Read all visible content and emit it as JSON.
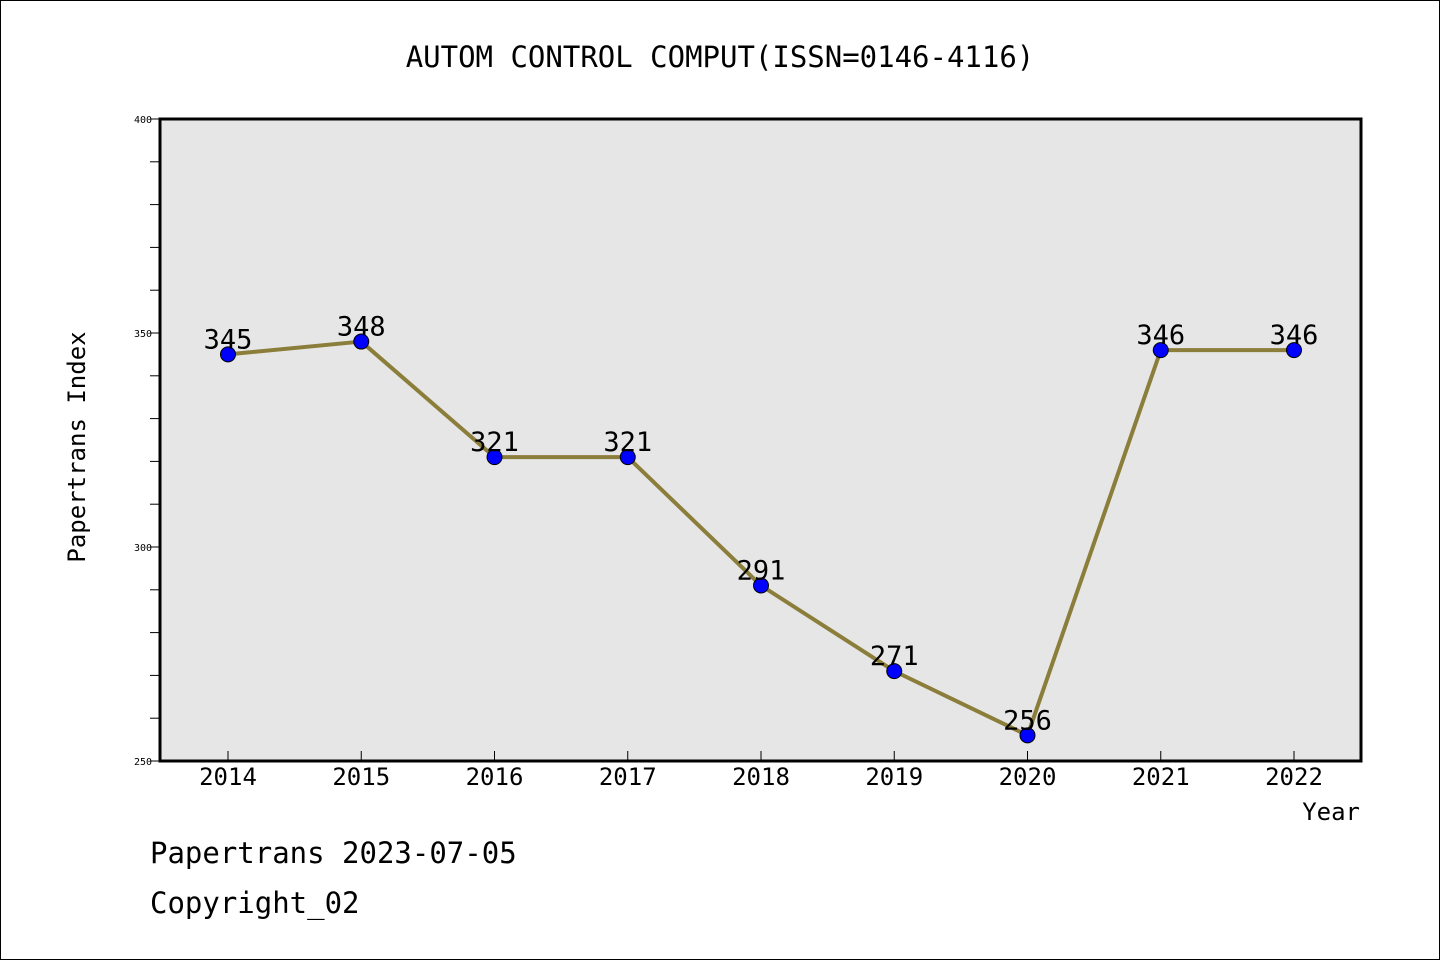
{
  "chart_data": {
    "type": "line",
    "title": "AUTOM CONTROL COMPUT(ISSN=0146-4116)",
    "xlabel": "Year",
    "ylabel": "Papertrans Index",
    "categories": [
      "2014",
      "2015",
      "2016",
      "2017",
      "2018",
      "2019",
      "2020",
      "2021",
      "2022"
    ],
    "values": [
      345,
      348,
      321,
      321,
      291,
      271,
      256,
      346,
      346
    ],
    "data_labels": [
      "345",
      "348",
      "321",
      "321",
      "291",
      "271",
      "256",
      "346",
      "346"
    ],
    "ylim": [
      250,
      400
    ],
    "yticks": [
      "250",
      "300",
      "350",
      "400"
    ],
    "grid": false,
    "colors": {
      "line": "#8b7d3a",
      "marker": "#0000ff",
      "plot_background": "#e6e6e6"
    }
  },
  "footer": {
    "line1": "Papertrans 2023-07-05",
    "line2": "Copyright_02"
  }
}
